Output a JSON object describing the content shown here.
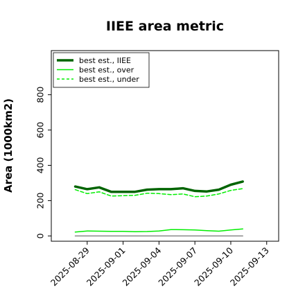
{
  "chart_data": {
    "type": "line",
    "title": "IIEE area metric",
    "xlabel": "",
    "ylabel": "Area (1000km2)",
    "x": [
      "2025-08-28",
      "2025-08-29",
      "2025-08-30",
      "2025-08-31",
      "2025-09-01",
      "2025-09-02",
      "2025-09-03",
      "2025-09-04",
      "2025-09-05",
      "2025-09-06",
      "2025-09-07",
      "2025-09-08",
      "2025-09-09",
      "2025-09-10",
      "2025-09-11"
    ],
    "xlim": [
      "2025-08-26",
      "2025-09-14"
    ],
    "ylim": [
      -30,
      1050
    ],
    "x_ticks": [
      "2025-08-29",
      "2025-09-01",
      "2025-09-04",
      "2025-09-07",
      "2025-09-10",
      "2025-09-13"
    ],
    "y_ticks": [
      0,
      200,
      400,
      600,
      800
    ],
    "grid": false,
    "legend_position": "top-left",
    "series": [
      {
        "name": "best est., IIEE",
        "color": "#006400",
        "style": "solid",
        "width": "thick",
        "values": [
          280,
          265,
          275,
          250,
          250,
          250,
          262,
          265,
          265,
          270,
          255,
          252,
          262,
          290,
          308
        ]
      },
      {
        "name": "best est., over",
        "color": "#00ee00",
        "style": "solid",
        "width": "thin",
        "values": [
          22,
          28,
          27,
          26,
          26,
          24,
          25,
          28,
          36,
          35,
          34,
          30,
          27,
          34,
          40
        ]
      },
      {
        "name": "best est., under",
        "color": "#00ee00",
        "style": "dashed",
        "width": "thin",
        "values": [
          262,
          240,
          250,
          226,
          228,
          230,
          242,
          240,
          234,
          238,
          222,
          226,
          238,
          258,
          268
        ]
      },
      {
        "name": "",
        "color": "#888888",
        "style": "solid",
        "width": "thin",
        "values": [
          0,
          0,
          0,
          0,
          0,
          0,
          0,
          0,
          0,
          0,
          0,
          0,
          0,
          0,
          0
        ]
      }
    ]
  }
}
